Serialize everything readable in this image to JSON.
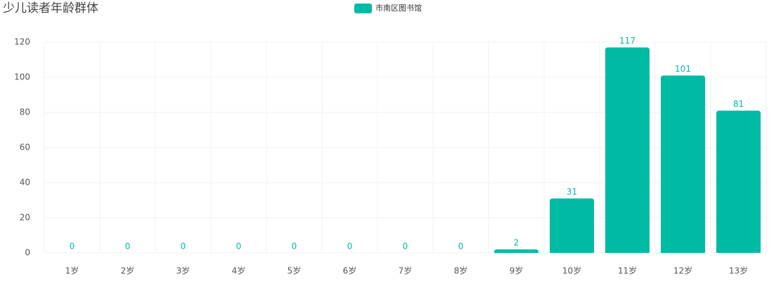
{
  "chart_data": {
    "type": "bar",
    "title": "少儿读者年龄群体",
    "categories": [
      "1岁",
      "2岁",
      "3岁",
      "4岁",
      "5岁",
      "6岁",
      "7岁",
      "8岁",
      "9岁",
      "10岁",
      "11岁",
      "12岁",
      "13岁"
    ],
    "series": [
      {
        "name": "市南区图书馆",
        "color": "#00bba3",
        "values": [
          0,
          0,
          0,
          0,
          0,
          0,
          0,
          0,
          2,
          31,
          117,
          101,
          81
        ]
      }
    ],
    "ylim": [
      0,
      120
    ],
    "yticks": [
      0,
      20,
      40,
      60,
      80,
      100,
      120
    ],
    "grid": true,
    "legend": "top"
  }
}
